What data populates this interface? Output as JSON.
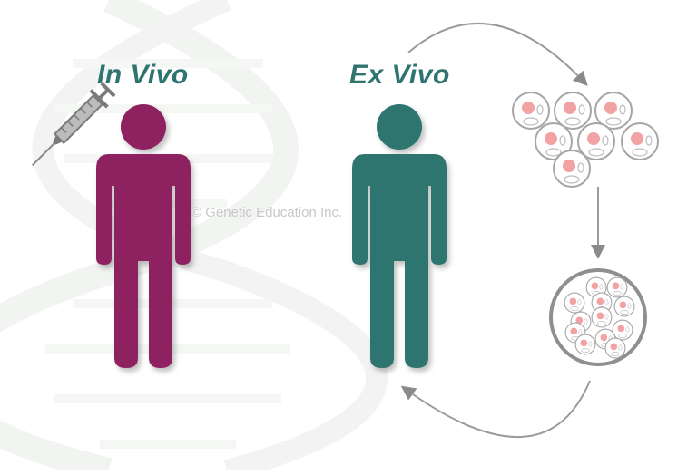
{
  "labels": {
    "in_vivo": "In Vivo",
    "ex_vivo": "Ex Vivo"
  },
  "watermark": "© Genetic Education Inc.",
  "colors": {
    "in_vivo": "#8e2460",
    "ex_vivo": "#2f7470",
    "arrow": "#9a9a9a",
    "cell_outline": "#a8a8a8",
    "nucleus": "#f2a6a6",
    "background_helix": "#eef2ee"
  },
  "icons": [
    "dna-helix-icon",
    "syringe-icon",
    "person-icon",
    "cell-icon",
    "culture-dish-icon",
    "curved-arrow-icon"
  ]
}
